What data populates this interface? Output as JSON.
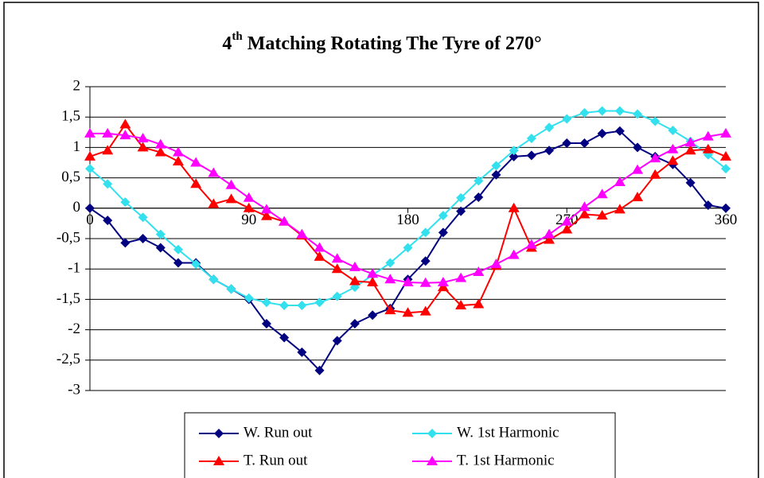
{
  "chart_data": {
    "type": "line",
    "title_number": "4",
    "title_superscript": "th",
    "title_text": "Matching Rotating The Tyre of 270°",
    "x": [
      0,
      10,
      20,
      30,
      40,
      50,
      60,
      70,
      80,
      90,
      100,
      110,
      120,
      130,
      140,
      150,
      160,
      170,
      180,
      190,
      200,
      210,
      220,
      230,
      240,
      250,
      260,
      270,
      280,
      290,
      300,
      310,
      320,
      330,
      340,
      350,
      360
    ],
    "xlim": [
      0,
      360
    ],
    "xticks": [
      0,
      90,
      180,
      270,
      360
    ],
    "ylim": [
      -3,
      2
    ],
    "yticks": [
      -3,
      {
        "value": -2.5,
        "label": "-2,5"
      },
      -2,
      {
        "value": -1.5,
        "label": "-1,5"
      },
      -1,
      {
        "value": -0.5,
        "label": "-0,5"
      },
      0,
      {
        "value": 0.5,
        "label": "0,5"
      },
      1,
      {
        "value": 1.5,
        "label": "1,5"
      },
      2
    ],
    "grid": true,
    "legend": "bottom",
    "series": [
      {
        "name": "W. Run out",
        "color": "#000080",
        "marker": "diamond",
        "values": [
          0,
          -0.2,
          -0.57,
          -0.5,
          -0.65,
          -0.9,
          -0.9,
          -1.17,
          -1.33,
          -1.5,
          -1.9,
          -2.13,
          -2.37,
          -2.67,
          -2.18,
          -1.9,
          -1.76,
          -1.65,
          -1.17,
          -0.87,
          -0.4,
          -0.05,
          0.18,
          0.55,
          0.85,
          0.87,
          0.95,
          1.07,
          1.07,
          1.23,
          1.27,
          1.0,
          0.85,
          0.72,
          0.42,
          0.05,
          0
        ]
      },
      {
        "name": "W. 1st Harmonic",
        "color": "#33e0ee",
        "marker": "diamond",
        "values": [
          0.65,
          0.4,
          0.1,
          -0.15,
          -0.43,
          -0.68,
          -0.92,
          -1.17,
          -1.33,
          -1.48,
          -1.55,
          -1.6,
          -1.6,
          -1.55,
          -1.45,
          -1.3,
          -1.1,
          -0.9,
          -0.65,
          -0.4,
          -0.12,
          0.17,
          0.45,
          0.7,
          0.95,
          1.15,
          1.33,
          1.47,
          1.57,
          1.6,
          1.6,
          1.55,
          1.43,
          1.28,
          1.1,
          0.88,
          0.65
        ]
      },
      {
        "name": "T. Run out",
        "color": "#ff0000",
        "marker": "triangle",
        "values": [
          0.85,
          0.95,
          1.38,
          1.0,
          0.92,
          0.77,
          0.4,
          0.07,
          0.15,
          0.0,
          -0.13,
          -0.22,
          -0.45,
          -0.8,
          -1.0,
          -1.2,
          -1.22,
          -1.68,
          -1.72,
          -1.7,
          -1.3,
          -1.6,
          -1.58,
          -0.95,
          0.0,
          -0.65,
          -0.52,
          -0.35,
          -0.1,
          -0.12,
          -0.02,
          0.18,
          0.55,
          0.78,
          0.95,
          0.97,
          0.85
        ]
      },
      {
        "name": "T. 1st Harmonic",
        "color": "#ff00ff",
        "marker": "triangle",
        "values": [
          1.23,
          1.23,
          1.2,
          1.15,
          1.05,
          0.92,
          0.75,
          0.58,
          0.38,
          0.17,
          -0.02,
          -0.22,
          -0.43,
          -0.65,
          -0.83,
          -0.97,
          -1.08,
          -1.17,
          -1.22,
          -1.23,
          -1.22,
          -1.15,
          -1.05,
          -0.92,
          -0.77,
          -0.6,
          -0.43,
          -0.22,
          0.02,
          0.23,
          0.43,
          0.63,
          0.82,
          0.97,
          1.08,
          1.18,
          1.23
        ]
      }
    ]
  }
}
